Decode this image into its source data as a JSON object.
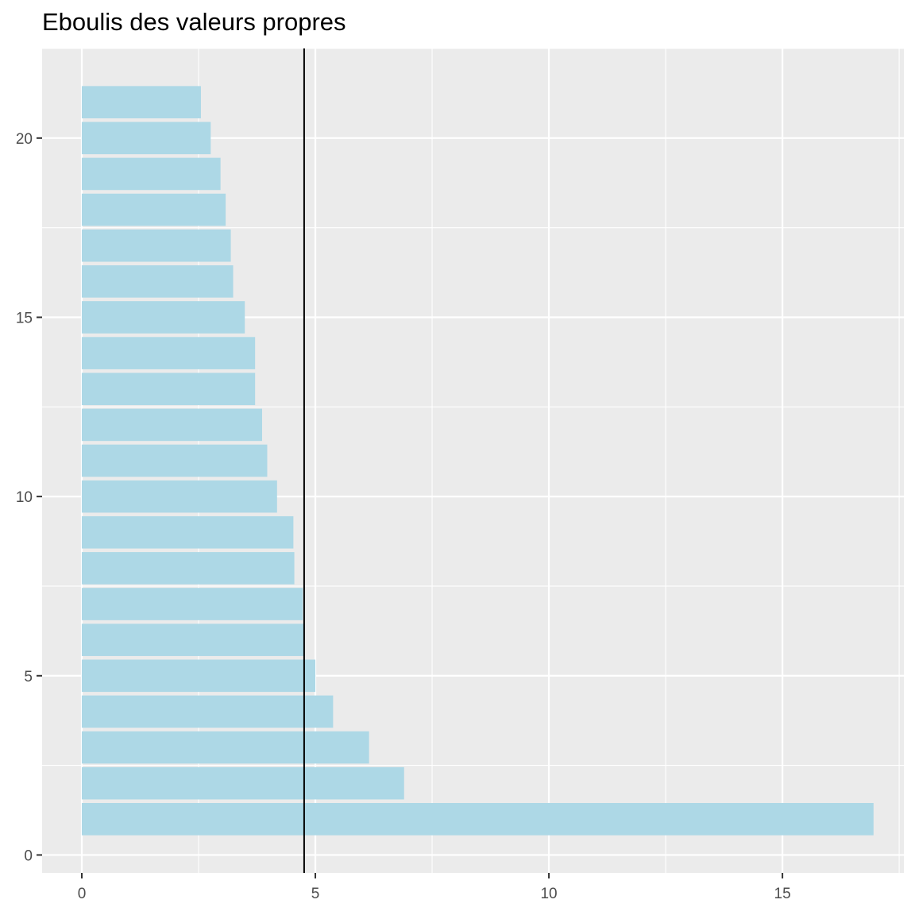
{
  "chart_data": {
    "type": "bar",
    "orientation": "horizontal",
    "title": "Eboulis des valeurs propres",
    "xlabel": "",
    "ylabel": "",
    "categories": [
      1,
      2,
      3,
      4,
      5,
      6,
      7,
      8,
      9,
      10,
      11,
      12,
      13,
      14,
      15,
      16,
      17,
      18,
      19,
      20,
      21
    ],
    "values": [
      16.95,
      6.9,
      6.15,
      5.38,
      5.0,
      4.75,
      4.73,
      4.55,
      4.53,
      4.18,
      3.97,
      3.86,
      3.71,
      3.71,
      3.49,
      3.24,
      3.19,
      3.08,
      2.97,
      2.76,
      2.55
    ],
    "reference_line": {
      "axis": "x",
      "value": 4.76,
      "color": "#000000"
    },
    "xlim": [
      -0.85,
      17.6
    ],
    "ylim": [
      -0.5,
      22.5
    ],
    "xticks": [
      0,
      5,
      10,
      15
    ],
    "xtick_labels": [
      "0",
      "5",
      "10",
      "15"
    ],
    "yticks": [
      0,
      5,
      10,
      15,
      20
    ],
    "ytick_labels": [
      "0",
      "5",
      "10",
      "15",
      "20"
    ],
    "grid": true,
    "bar_color": "#ADD8E6",
    "panel_color": "#EBEBEB",
    "grid_color": "#FFFFFF"
  }
}
